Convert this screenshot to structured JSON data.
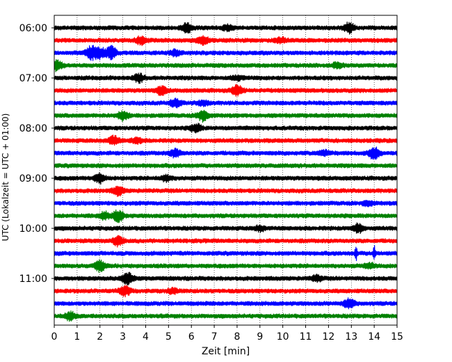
{
  "chart_data": {
    "type": "line",
    "title": "",
    "xlabel": "Zeit  [min]",
    "ylabel": "UTC (Lokalzeit = UTC + 01:00)",
    "xlim": [
      0,
      15
    ],
    "xticks": [
      0,
      1,
      2,
      3,
      4,
      5,
      6,
      7,
      8,
      9,
      10,
      11,
      12,
      13,
      14,
      15
    ],
    "ytick_labels": [
      "06:00",
      "07:00",
      "08:00",
      "09:00",
      "10:00",
      "11:00"
    ],
    "grid": "vertical dotted lines at each minute",
    "trace_interval_min": 15,
    "start_time": "06:00",
    "color_cycle": [
      "#000000",
      "#ff0000",
      "#0000ff",
      "#008000"
    ],
    "series": [
      {
        "time": "06:00",
        "color": "#000000",
        "bursts": [
          [
            5.8,
            2.2
          ],
          [
            7.6,
            1.4
          ],
          [
            12.9,
            2.4
          ]
        ]
      },
      {
        "time": "06:15",
        "color": "#ff0000",
        "bursts": [
          [
            3.8,
            2.0
          ],
          [
            6.5,
            2.4
          ],
          [
            9.9,
            1.2
          ]
        ]
      },
      {
        "time": "06:30",
        "color": "#0000ff",
        "bursts": [
          [
            1.6,
            3.5
          ],
          [
            2.0,
            2.6
          ],
          [
            2.5,
            3.2
          ],
          [
            5.3,
            1.3
          ]
        ]
      },
      {
        "time": "06:45",
        "color": "#008000",
        "bursts": [
          [
            0.1,
            2.8
          ],
          [
            12.4,
            1.3
          ]
        ]
      },
      {
        "time": "07:00",
        "color": "#000000",
        "bursts": [
          [
            3.7,
            2.0
          ],
          [
            8.0,
            1.0
          ]
        ]
      },
      {
        "time": "07:15",
        "color": "#ff0000",
        "bursts": [
          [
            4.7,
            2.0
          ],
          [
            8.0,
            2.6
          ]
        ]
      },
      {
        "time": "07:30",
        "color": "#0000ff",
        "bursts": [
          [
            5.3,
            2.0
          ],
          [
            6.5,
            1.2
          ]
        ]
      },
      {
        "time": "07:45",
        "color": "#008000",
        "bursts": [
          [
            3.0,
            2.2
          ],
          [
            6.5,
            2.8
          ]
        ]
      },
      {
        "time": "08:00",
        "color": "#000000",
        "bursts": [
          [
            6.2,
            2.0
          ]
        ]
      },
      {
        "time": "08:15",
        "color": "#ff0000",
        "bursts": [
          [
            2.6,
            2.2
          ],
          [
            3.6,
            1.4
          ]
        ]
      },
      {
        "time": "08:30",
        "color": "#0000ff",
        "bursts": [
          [
            5.3,
            2.0
          ],
          [
            11.8,
            1.4
          ],
          [
            14.0,
            3.0
          ]
        ]
      },
      {
        "time": "08:45",
        "color": "#008000",
        "bursts": []
      },
      {
        "time": "09:00",
        "color": "#000000",
        "bursts": [
          [
            2.0,
            2.4
          ],
          [
            4.9,
            1.4
          ]
        ]
      },
      {
        "time": "09:15",
        "color": "#ff0000",
        "bursts": [
          [
            2.8,
            2.2
          ]
        ]
      },
      {
        "time": "09:30",
        "color": "#0000ff",
        "bursts": [
          [
            13.7,
            1.2
          ]
        ]
      },
      {
        "time": "09:45",
        "color": "#008000",
        "bursts": [
          [
            2.2,
            1.6
          ],
          [
            2.8,
            2.8
          ]
        ]
      },
      {
        "time": "10:00",
        "color": "#000000",
        "bursts": [
          [
            9.0,
            1.2
          ],
          [
            13.3,
            2.2
          ]
        ]
      },
      {
        "time": "10:15",
        "color": "#ff0000",
        "bursts": [
          [
            2.8,
            2.4
          ]
        ]
      },
      {
        "time": "10:30",
        "color": "#0000ff",
        "bursts": [
          [
            13.2,
            4.0
          ],
          [
            14.0,
            4.0
          ]
        ]
      },
      {
        "time": "10:45",
        "color": "#008000",
        "bursts": [
          [
            2.0,
            2.6
          ],
          [
            13.8,
            1.2
          ]
        ]
      },
      {
        "time": "11:00",
        "color": "#000000",
        "bursts": [
          [
            3.2,
            3.0
          ],
          [
            11.5,
            1.4
          ]
        ]
      },
      {
        "time": "11:15",
        "color": "#ff0000",
        "bursts": [
          [
            3.1,
            2.4
          ],
          [
            5.2,
            1.2
          ]
        ]
      },
      {
        "time": "11:30",
        "color": "#0000ff",
        "bursts": [
          [
            12.9,
            2.4
          ]
        ]
      },
      {
        "time": "11:45",
        "color": "#008000",
        "bursts": [
          [
            0.7,
            2.0
          ]
        ]
      }
    ]
  }
}
